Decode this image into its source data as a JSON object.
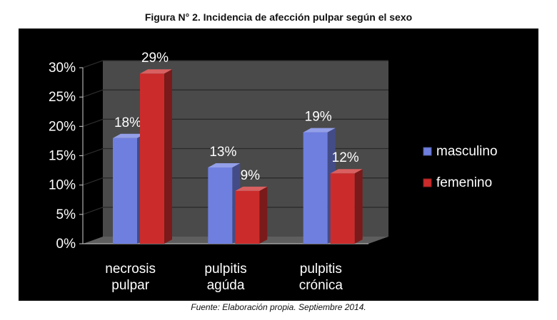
{
  "title": "Figura N° 2.  Incidencia de afección pulpar según el sexo",
  "source": "Fuente: Elaboración propia. Septiembre 2014.",
  "colors": {
    "background": "#000000",
    "wall": "#4a4a4a",
    "floor": "#5e5e5e",
    "text": "#ffffff",
    "masculino": "#6f7fe0",
    "femenino": "#cc2b2b"
  },
  "chart_data": {
    "type": "bar",
    "categories": [
      [
        "necrosis",
        "pulpar"
      ],
      [
        "pulpitis",
        "agúda"
      ],
      [
        "pulpitis",
        "crónica"
      ]
    ],
    "series": [
      {
        "name": "masculino",
        "values": [
          18,
          13,
          19
        ],
        "labels": [
          "18%",
          "13%",
          "19%"
        ]
      },
      {
        "name": "femenino",
        "values": [
          29,
          9,
          12
        ],
        "labels": [
          "29%",
          "9%",
          "12%"
        ]
      }
    ],
    "yticks": [
      "0%",
      "5%",
      "10%",
      "15%",
      "20%",
      "25%",
      "30%"
    ],
    "ylim": [
      0,
      30
    ],
    "legend": "right",
    "grid": true
  }
}
